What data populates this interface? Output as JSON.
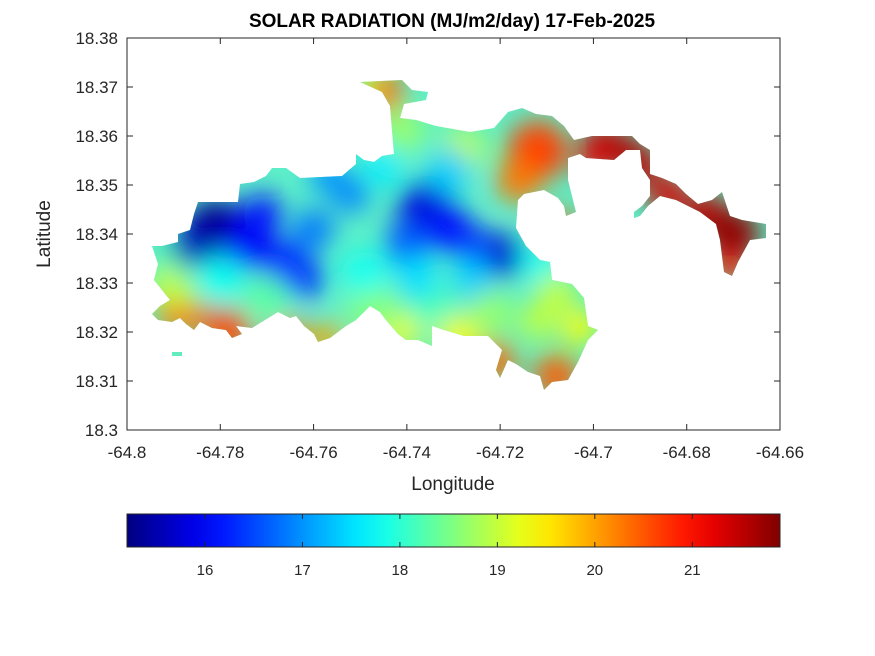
{
  "chart_data": {
    "type": "heatmap",
    "title": "SOLAR RADIATION (MJ/m2/day) 17-Feb-2025",
    "xlabel": "Longitude",
    "ylabel": "Latitude",
    "xlim": [
      -64.8,
      -64.66
    ],
    "ylim": [
      18.3,
      18.38
    ],
    "x_ticks": [
      -64.8,
      -64.78,
      -64.76,
      -64.74,
      -64.72,
      -64.7,
      -64.68,
      -64.66
    ],
    "y_ticks": [
      18.3,
      18.31,
      18.32,
      18.33,
      18.34,
      18.35,
      18.36,
      18.37,
      18.38
    ],
    "x_tick_labels": [
      "-64.8",
      "-64.78",
      "-64.76",
      "-64.74",
      "-64.72",
      "-64.7",
      "-64.68",
      "-64.66"
    ],
    "y_tick_labels": [
      "18.3",
      "18.31",
      "18.32",
      "18.33",
      "18.34",
      "18.35",
      "18.36",
      "18.37",
      "18.38"
    ],
    "grid": false,
    "colormap": "jet",
    "colorbar": {
      "orientation": "horizontal",
      "location": "below",
      "range": [
        15.2,
        21.9
      ],
      "ticks": [
        16,
        17,
        18,
        19,
        20,
        21
      ],
      "tick_labels": [
        "16",
        "17",
        "18",
        "19",
        "20",
        "21"
      ],
      "colors": [
        "#00007f",
        "#0000ff",
        "#007fff",
        "#00ffff",
        "#7fff7f",
        "#ffff00",
        "#ff7f00",
        "#ff0000",
        "#7f0000"
      ]
    },
    "min_centers": [
      {
        "lon": -64.781,
        "lat": 18.341,
        "value": 15.3
      },
      {
        "lon": -64.736,
        "lat": 18.345,
        "value": 15.8
      },
      {
        "lon": -64.7195,
        "lat": 18.3355,
        "value": 15.7
      },
      {
        "lon": -64.7665,
        "lat": 18.336,
        "value": 16.3
      }
    ],
    "max_regions": [
      {
        "lon": -64.669,
        "lat": 18.339,
        "value": 21.8
      },
      {
        "lon": -64.693,
        "lat": 18.358,
        "value": 21.6
      },
      {
        "lon": -64.683,
        "lat": 18.348,
        "value": 21.3
      },
      {
        "lon": -64.713,
        "lat": 18.359,
        "value": 20.6
      },
      {
        "lon": -64.782,
        "lat": 18.322,
        "value": 20.5
      },
      {
        "lon": -64.7205,
        "lat": 18.3135,
        "value": 20.4
      },
      {
        "lon": -64.708,
        "lat": 18.312,
        "value": 20.4
      },
      {
        "lon": -64.744,
        "lat": 18.3685,
        "value": 20.4
      }
    ]
  }
}
